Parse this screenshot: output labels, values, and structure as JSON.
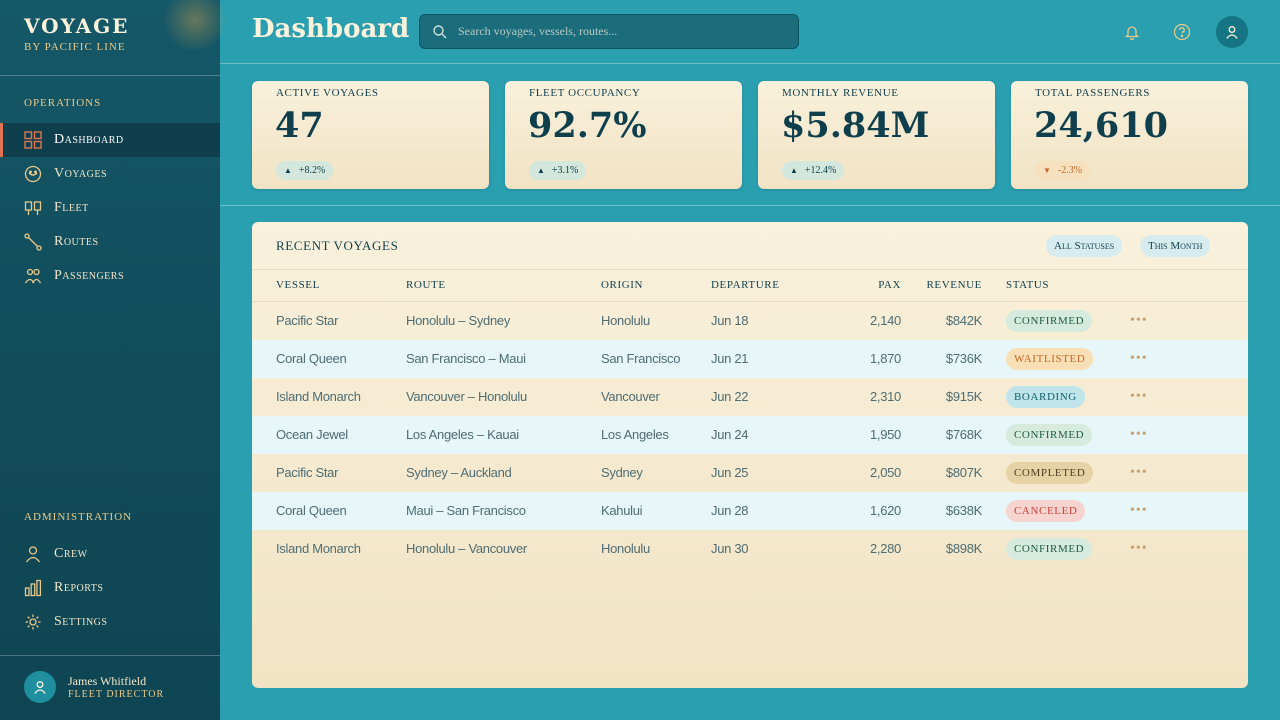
{
  "brand": {
    "title": "VOYAGE",
    "subtitle": "BY PACIFIC LINE"
  },
  "sidebar": {
    "operations_label": "OPERATIONS",
    "operations": [
      {
        "label": "Dashboard",
        "icon": "grid-icon",
        "active": true
      },
      {
        "label": "Voyages",
        "icon": "compass-icon"
      },
      {
        "label": "Fleet",
        "icon": "ship-icon"
      },
      {
        "label": "Routes",
        "icon": "route-icon"
      },
      {
        "label": "Passengers",
        "icon": "users-icon"
      }
    ],
    "admin_label": "ADMINISTRATION",
    "admin": [
      {
        "label": "Crew",
        "icon": "person-icon"
      },
      {
        "label": "Reports",
        "icon": "bar-chart-icon"
      },
      {
        "label": "Settings",
        "icon": "gear-icon"
      }
    ]
  },
  "user": {
    "name": "James Whitfield",
    "role": "FLEET DIRECTOR"
  },
  "header": {
    "title": "Dashboard",
    "search_placeholder": "Search voyages, vessels, routes..."
  },
  "stats": [
    {
      "label": "Active Voyages",
      "value": "47",
      "change": "+8.2%",
      "trend": "up"
    },
    {
      "label": "Fleet Occupancy",
      "value": "92.7%",
      "change": "+3.1%",
      "trend": "up"
    },
    {
      "label": "Monthly Revenue",
      "value": "$5.84M",
      "change": "+12.4%",
      "trend": "up"
    },
    {
      "label": "Total Passengers",
      "value": "24,610",
      "change": "-2.3%",
      "trend": "down"
    }
  ],
  "voyages": {
    "title": "RECENT VOYAGES",
    "filters": [
      "All Statuses",
      "This Month"
    ],
    "columns": [
      "Vessel",
      "Route",
      "Origin",
      "Departure",
      "Pax",
      "Revenue",
      "Status"
    ],
    "rows": [
      {
        "vessel": "Pacific Star",
        "route": "Honolulu – Sydney",
        "origin": "Honolulu",
        "departure": "Jun 18",
        "pax": "2,140",
        "revenue": "$842K",
        "status": "CONFIRMED"
      },
      {
        "vessel": "Coral Queen",
        "route": "San Francisco – Maui",
        "origin": "San Francisco",
        "departure": "Jun 21",
        "pax": "1,870",
        "revenue": "$736K",
        "status": "WAITLISTED"
      },
      {
        "vessel": "Island Monarch",
        "route": "Vancouver – Honolulu",
        "origin": "Vancouver",
        "departure": "Jun 22",
        "pax": "2,310",
        "revenue": "$915K",
        "status": "BOARDING"
      },
      {
        "vessel": "Ocean Jewel",
        "route": "Los Angeles – Kauai",
        "origin": "Los Angeles",
        "departure": "Jun 24",
        "pax": "1,950",
        "revenue": "$768K",
        "status": "CONFIRMED"
      },
      {
        "vessel": "Pacific Star",
        "route": "Sydney – Auckland",
        "origin": "Sydney",
        "departure": "Jun 25",
        "pax": "2,050",
        "revenue": "$807K",
        "status": "COMPLETED"
      },
      {
        "vessel": "Coral Queen",
        "route": "Maui – San Francisco",
        "origin": "Kahului",
        "departure": "Jun 28",
        "pax": "1,620",
        "revenue": "$638K",
        "status": "CANCELED"
      },
      {
        "vessel": "Island Monarch",
        "route": "Honolulu – Vancouver",
        "origin": "Honolulu",
        "departure": "Jun 30",
        "pax": "2,280",
        "revenue": "$898K",
        "status": "CONFIRMED"
      }
    ]
  },
  "status_colors": {
    "CONFIRMED": {
      "bg": "#d6ebdd",
      "fg": "#1f5a45"
    },
    "WAITLISTED": {
      "bg": "#f8dfb5",
      "fg": "#c8682a"
    },
    "BOARDING": {
      "bg": "#bfe4ea",
      "fg": "#14606e"
    },
    "COMPLETED": {
      "bg": "#e6d2a4",
      "fg": "#4e3e1f"
    },
    "CANCELED": {
      "bg": "#f8d4d0",
      "fg": "#cc4038"
    }
  },
  "colors": {
    "accent": "#e27451",
    "sidebar": "#114a58",
    "background": "#2a9fb0",
    "card": "#f6ead0"
  }
}
